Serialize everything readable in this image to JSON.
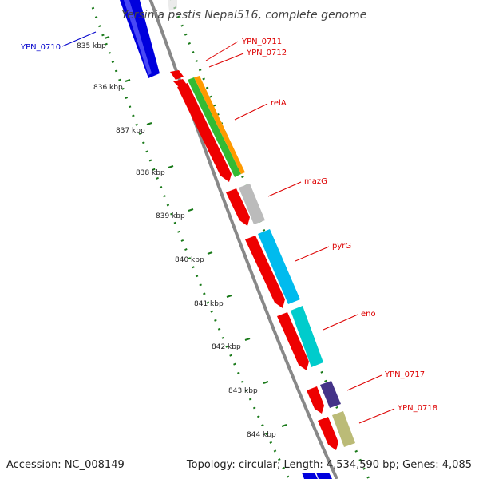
{
  "title": "Yersinia pestis Nepal516, complete genome",
  "accession": "Accession: NC_008149",
  "topology": "Topology: circular; Length: 4,534,590 bp; Genes: 4,085",
  "ticks": [
    {
      "label": "835 kbp"
    },
    {
      "label": "836 kbp"
    },
    {
      "label": "837 kbp"
    },
    {
      "label": "838 kbp"
    },
    {
      "label": "839 kbp"
    },
    {
      "label": "840 kbp"
    },
    {
      "label": "841 kbp"
    },
    {
      "label": "842 kbp"
    },
    {
      "label": "843 kbp"
    },
    {
      "label": "844 kbp"
    }
  ],
  "genes": [
    {
      "name": "YPN_0710",
      "color": "#0000cc"
    },
    {
      "name": "YPN_0711",
      "color": "#dd0000"
    },
    {
      "name": "YPN_0712",
      "color": "#dd0000"
    },
    {
      "name": "relA",
      "color": "#dd0000"
    },
    {
      "name": "mazG",
      "color": "#dd0000"
    },
    {
      "name": "pyrG",
      "color": "#dd0000"
    },
    {
      "name": "eno",
      "color": "#dd0000"
    },
    {
      "name": "YPN_0717",
      "color": "#dd0000"
    },
    {
      "name": "YPN_0718",
      "color": "#dd0000"
    }
  ],
  "colors": {
    "backbone": "#888888",
    "tick": "#1a7a1a",
    "cds_strand": "#ee0000",
    "reverse_strand": "#0000ee",
    "relA_track": "#33bb33",
    "relA_track2": "#ff9900",
    "mazG_track": "#bbbbbb",
    "pyrG_track": "#00bbee",
    "eno_track": "#00cccc",
    "ypn0717_track": "#443388",
    "ypn0718_track": "#bbbb77"
  }
}
